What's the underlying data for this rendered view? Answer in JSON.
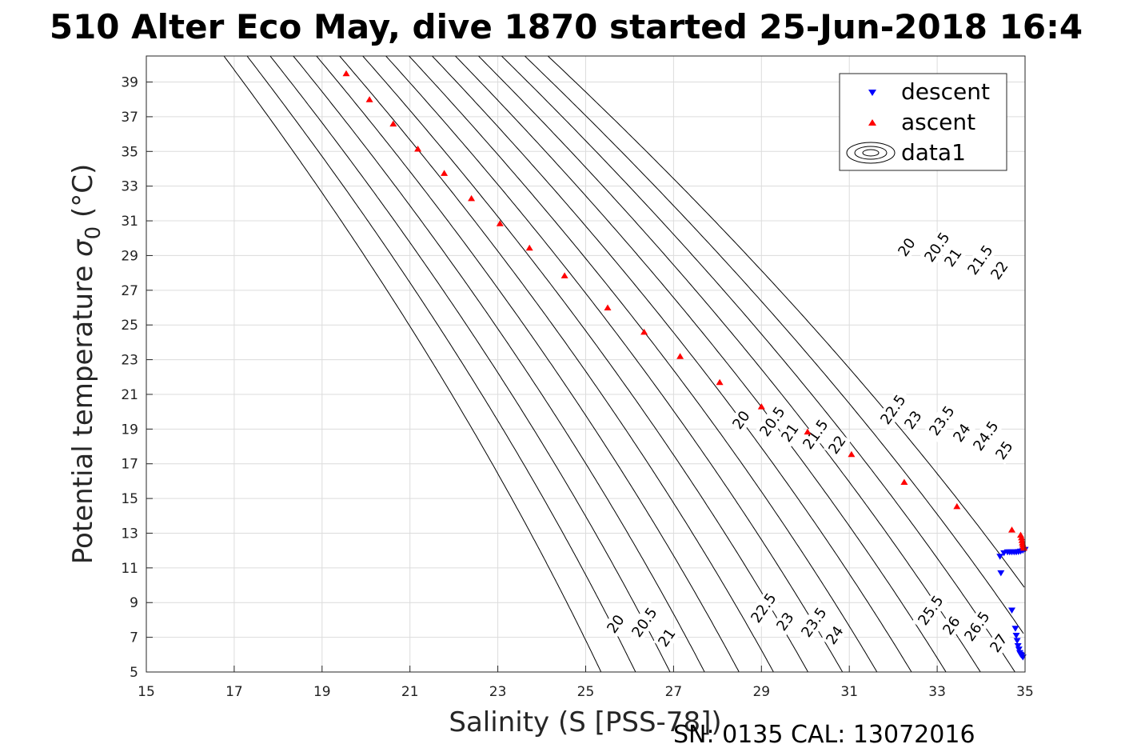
{
  "chart_data": {
    "type": "scatter",
    "title": "510 Alter Eco May, dive 1870 started 25-Jun-2018 16:4",
    "xlabel": "Salinity (S [PSS-78])",
    "ylabel_main": "Potential temperature ",
    "ylabel_sigma": "σ",
    "ylabel_sub": "0",
    "ylabel_unit": " (°C)",
    "xlim": [
      15,
      35
    ],
    "ylim": [
      5,
      40.5
    ],
    "xticks": [
      "15",
      "17",
      "19",
      "21",
      "23",
      "25",
      "27",
      "29",
      "31",
      "33",
      "35"
    ],
    "yticks": [
      "5",
      "7",
      "9",
      "11",
      "13",
      "15",
      "17",
      "19",
      "21",
      "23",
      "25",
      "27",
      "29",
      "31",
      "33",
      "35",
      "37",
      "39"
    ],
    "grid": true,
    "legend_placement": "top-right",
    "legend": [
      "descent",
      "ascent",
      "data1"
    ],
    "colors": {
      "descent": "#0000ff",
      "ascent": "#ff0000",
      "contour": "#000000",
      "grid": "#dcdcdc"
    },
    "contour_levels": [
      20,
      20.5,
      21,
      21.5,
      22,
      22.5,
      23,
      23.5,
      24,
      24.5,
      25,
      25.5,
      26,
      26.5,
      27
    ],
    "contour_labels_lower": [
      "20",
      "20.5",
      "21",
      "22.5",
      "23",
      "23.5",
      "24",
      "25.5",
      "26",
      "26.5",
      "27"
    ],
    "contour_labels_middle": [
      "20",
      "20.5",
      "21",
      "21.5",
      "22",
      "22.5",
      "23",
      "23.5",
      "24",
      "24.5",
      "25"
    ],
    "contour_labels_upper": [
      "20",
      "20.5",
      "21",
      "21.5",
      "22"
    ],
    "series": [
      {
        "name": "descent",
        "marker": "triangle-down",
        "points": [
          [
            34.43,
            11.65
          ],
          [
            34.52,
            11.85
          ],
          [
            34.6,
            11.9
          ],
          [
            34.65,
            11.9
          ],
          [
            34.7,
            11.9
          ],
          [
            34.75,
            11.9
          ],
          [
            34.8,
            11.9
          ],
          [
            34.85,
            11.92
          ],
          [
            34.9,
            11.95
          ],
          [
            34.95,
            12.0
          ],
          [
            35.0,
            12.05
          ],
          [
            34.45,
            10.7
          ],
          [
            34.7,
            8.55
          ],
          [
            34.78,
            7.5
          ],
          [
            34.8,
            7.1
          ],
          [
            34.82,
            6.8
          ],
          [
            34.84,
            6.5
          ],
          [
            34.86,
            6.3
          ],
          [
            34.88,
            6.1
          ],
          [
            34.9,
            6.0
          ],
          [
            34.92,
            5.95
          ],
          [
            34.95,
            5.85
          ]
        ]
      },
      {
        "name": "ascent",
        "marker": "triangle-up",
        "points": [
          [
            19.55,
            39.5
          ],
          [
            20.08,
            38.0
          ],
          [
            20.62,
            36.6
          ],
          [
            21.18,
            35.15
          ],
          [
            21.78,
            33.75
          ],
          [
            22.4,
            32.3
          ],
          [
            23.05,
            30.85
          ],
          [
            23.72,
            29.45
          ],
          [
            24.52,
            27.85
          ],
          [
            25.5,
            26.0
          ],
          [
            26.33,
            24.6
          ],
          [
            27.15,
            23.2
          ],
          [
            28.05,
            21.7
          ],
          [
            29.0,
            20.3
          ],
          [
            30.05,
            18.85
          ],
          [
            31.05,
            17.55
          ],
          [
            32.25,
            15.95
          ],
          [
            33.45,
            14.55
          ],
          [
            34.7,
            13.2
          ],
          [
            34.9,
            12.9
          ],
          [
            34.92,
            12.75
          ],
          [
            34.93,
            12.6
          ],
          [
            34.94,
            12.45
          ],
          [
            34.95,
            12.35
          ],
          [
            34.96,
            12.25
          ],
          [
            34.97,
            12.15
          ]
        ]
      }
    ]
  },
  "footer": "SN: 0135  CAL: 13072016"
}
